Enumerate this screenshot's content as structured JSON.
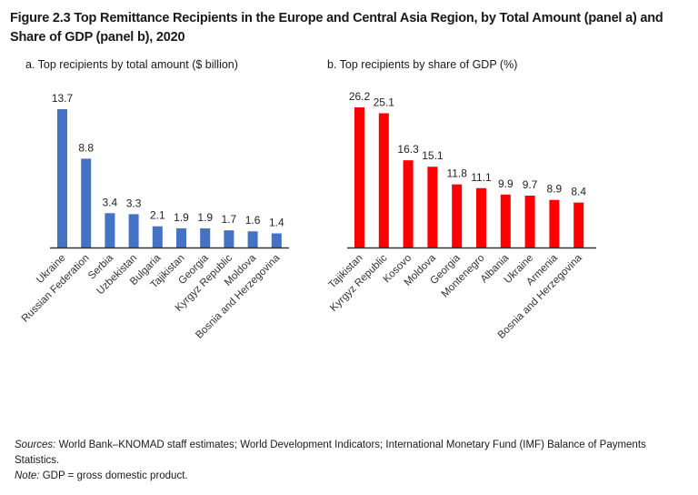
{
  "figure": {
    "title": "Figure 2.3 Top Remittance Recipients in the Europe and Central Asia Region, by Total Amount (panel a) and Share of GDP (panel b), 2020",
    "sources_label": "Sources:",
    "sources_text": " World Bank–KNOMAD staff estimates; World Development Indicators; International Monetary Fund (IMF) Balance of Payments Statistics.",
    "note_label": "Note:",
    "note_text": " GDP = gross domestic product."
  },
  "chart_data": [
    {
      "type": "bar",
      "title": "a. Top recipients by total amount ($ billion)",
      "categories": [
        "Ukraine",
        "Russian Federation",
        "Serbia",
        "Uzbekistan",
        "Bulgaria",
        "Tajikistan",
        "Georgia",
        "Kyrgyz Republic",
        "Moldova",
        "Bosnia and Herzegovina"
      ],
      "values": [
        13.7,
        8.8,
        3.4,
        3.3,
        2.1,
        1.9,
        1.9,
        1.7,
        1.6,
        1.4
      ],
      "labels": [
        "13.7",
        "8.8",
        "3.4",
        "3.3",
        "2.1",
        "1.9",
        "1.9",
        "1.7",
        "1.6",
        "1.4"
      ],
      "color": "#4472c4",
      "xlabel": "",
      "ylabel": "",
      "ylim": [
        0,
        13.7
      ],
      "grid": false
    },
    {
      "type": "bar",
      "title": "b. Top recipients by share of GDP (%)",
      "categories": [
        "Tajikistan",
        "Kyrgyz Republic",
        "Kosovo",
        "Moldova",
        "Georgia",
        "Montenegro",
        "Albania",
        "Ukraine",
        "Armenia",
        "Bosnia and Herzegovina"
      ],
      "values": [
        26.2,
        25.1,
        16.3,
        15.1,
        11.8,
        11.1,
        9.9,
        9.7,
        8.9,
        8.4
      ],
      "labels": [
        "26.2",
        "25.1",
        "16.3",
        "15.1",
        "11.8",
        "11.1",
        "9.9",
        "9.7",
        "8.9",
        "8.4"
      ],
      "color": "#ff0000",
      "xlabel": "",
      "ylabel": "",
      "ylim": [
        0,
        26.2
      ],
      "grid": false
    }
  ]
}
